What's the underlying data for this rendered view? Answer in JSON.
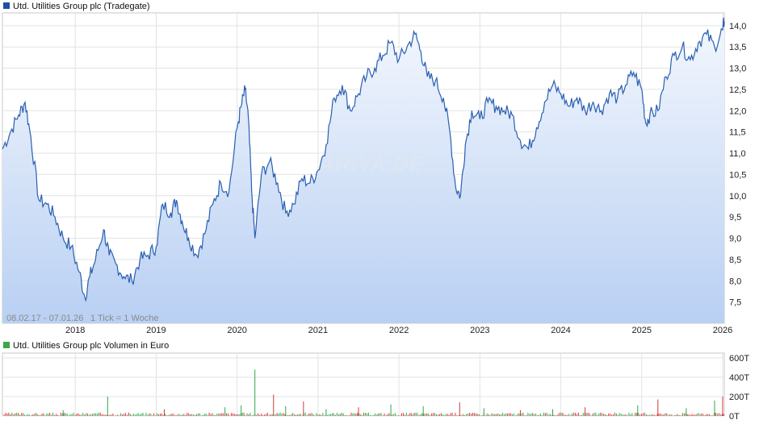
{
  "price_chart": {
    "legend_label": "Utd. Utilities Group plc (Tradegate)",
    "legend_color": "#1f4fa6",
    "line_color": "#2a5fb0",
    "range_label": "08.02.17 - 07.01.26",
    "tick_label": "1 Tick = 1 Woche",
    "watermark": "ARIVA.DE"
  },
  "volume_chart": {
    "legend_label": "Utd. Utilities Group plc Volumen in Euro",
    "legend_color": "#3aa84a",
    "up_color": "#2ea84a",
    "down_color": "#d23a3a"
  },
  "chart_data": [
    {
      "type": "line",
      "name": "price",
      "title": "Utd. Utilities Group plc (Tradegate)",
      "x_ticks": [
        "2018",
        "2019",
        "2020",
        "2021",
        "2022",
        "2023",
        "2024",
        "2025",
        "2026"
      ],
      "y_ticks": [
        "7,5",
        "8,0",
        "8,5",
        "9,0",
        "9,5",
        "10,0",
        "10,5",
        "11,0",
        "11,5",
        "12,0",
        "12,5",
        "13,0",
        "13,5",
        "14,0"
      ],
      "y_tick_values": [
        7.5,
        8.0,
        8.5,
        9.0,
        9.5,
        10.0,
        10.5,
        11.0,
        11.5,
        12.0,
        12.5,
        13.0,
        13.5,
        14.0
      ],
      "x_range": [
        2017.1,
        2026.02
      ],
      "ylim": [
        7.0,
        14.3
      ],
      "grid": true,
      "x": [
        2017.1,
        2017.2,
        2017.3,
        2017.38,
        2017.45,
        2017.55,
        2017.65,
        2017.75,
        2017.85,
        2017.95,
        2018.05,
        2018.12,
        2018.18,
        2018.25,
        2018.35,
        2018.42,
        2018.5,
        2018.6,
        2018.7,
        2018.8,
        2018.9,
        2019.0,
        2019.08,
        2019.18,
        2019.25,
        2019.32,
        2019.4,
        2019.5,
        2019.6,
        2019.7,
        2019.8,
        2019.9,
        2020.0,
        2020.05,
        2020.1,
        2020.14,
        2020.18,
        2020.22,
        2020.3,
        2020.4,
        2020.5,
        2020.6,
        2020.7,
        2020.8,
        2020.9,
        2021.0,
        2021.1,
        2021.2,
        2021.3,
        2021.4,
        2021.5,
        2021.6,
        2021.7,
        2021.8,
        2021.9,
        2022.0,
        2022.1,
        2022.2,
        2022.27,
        2022.35,
        2022.45,
        2022.55,
        2022.63,
        2022.7,
        2022.76,
        2022.82,
        2022.9,
        2023.0,
        2023.1,
        2023.2,
        2023.3,
        2023.4,
        2023.5,
        2023.6,
        2023.7,
        2023.8,
        2023.9,
        2024.0,
        2024.1,
        2024.2,
        2024.3,
        2024.4,
        2024.5,
        2024.6,
        2024.7,
        2024.8,
        2024.9,
        2025.0,
        2025.05,
        2025.1,
        2025.2,
        2025.3,
        2025.4,
        2025.5,
        2025.6,
        2025.7,
        2025.8,
        2025.9,
        2026.0,
        2026.02
      ],
      "y": [
        11.1,
        11.5,
        11.9,
        12.2,
        11.4,
        9.9,
        9.8,
        9.5,
        9.0,
        8.8,
        8.2,
        7.6,
        8.1,
        8.5,
        9.2,
        8.6,
        8.4,
        8.1,
        8.0,
        8.5,
        8.6,
        8.8,
        9.8,
        9.6,
        9.9,
        9.4,
        9.0,
        8.6,
        9.1,
        9.8,
        10.3,
        10.1,
        11.6,
        12.1,
        12.5,
        11.8,
        10.1,
        9.0,
        10.5,
        10.8,
        10.3,
        9.6,
        9.8,
        10.4,
        10.3,
        10.6,
        11.2,
        12.3,
        12.6,
        12.0,
        12.4,
        12.8,
        13.0,
        13.3,
        13.6,
        13.2,
        13.5,
        13.8,
        13.4,
        12.8,
        12.7,
        12.3,
        11.5,
        10.2,
        10.0,
        11.2,
        12.0,
        11.8,
        12.2,
        12.1,
        12.0,
        11.9,
        11.3,
        11.1,
        11.6,
        12.2,
        12.6,
        12.4,
        12.1,
        12.3,
        12.0,
        12.2,
        12.0,
        12.4,
        12.3,
        12.6,
        12.9,
        12.5,
        11.7,
        11.9,
        12.0,
        12.8,
        13.3,
        13.5,
        13.2,
        13.6,
        13.8,
        13.5,
        13.9,
        14.1
      ]
    },
    {
      "type": "bar",
      "name": "volume",
      "title": "Utd. Utilities Group plc Volumen in Euro",
      "y_ticks": [
        "0T",
        "200T",
        "400T",
        "600T"
      ],
      "y_tick_values": [
        0,
        200,
        400,
        600
      ],
      "ylim": [
        0,
        650
      ],
      "x_range": [
        2017.1,
        2026.02
      ],
      "spikes_x": [
        2017.85,
        2018.4,
        2019.1,
        2019.85,
        2020.05,
        2020.22,
        2020.45,
        2020.6,
        2020.82,
        2021.1,
        2021.5,
        2021.9,
        2022.3,
        2022.75,
        2023.05,
        2023.5,
        2023.9,
        2024.3,
        2024.95,
        2025.2,
        2025.55,
        2025.9,
        2026.0
      ],
      "spikes_v": [
        60,
        200,
        70,
        90,
        110,
        480,
        220,
        100,
        150,
        70,
        90,
        120,
        100,
        140,
        80,
        60,
        70,
        90,
        110,
        170,
        80,
        160,
        200
      ],
      "spikes_up": [
        true,
        true,
        false,
        true,
        true,
        true,
        false,
        true,
        false,
        true,
        false,
        true,
        true,
        false,
        true,
        false,
        true,
        false,
        true,
        false,
        true,
        true,
        false
      ]
    }
  ]
}
